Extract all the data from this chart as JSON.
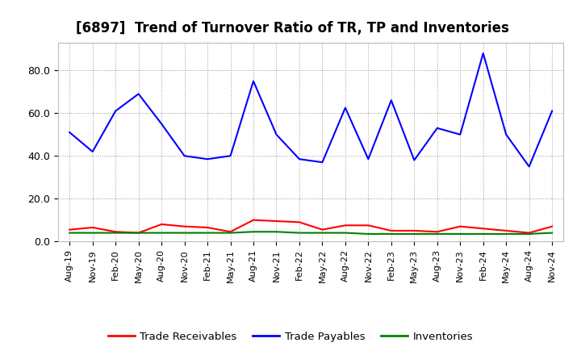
{
  "title": "[6897]  Trend of Turnover Ratio of TR, TP and Inventories",
  "x_labels": [
    "Aug-19",
    "Nov-19",
    "Feb-20",
    "May-20",
    "Aug-20",
    "Nov-20",
    "Feb-21",
    "May-21",
    "Aug-21",
    "Nov-21",
    "Feb-22",
    "May-22",
    "Aug-22",
    "Nov-22",
    "Feb-23",
    "May-23",
    "Aug-23",
    "Nov-23",
    "Feb-24",
    "May-24",
    "Aug-24",
    "Nov-24"
  ],
  "trade_receivables": [
    5.5,
    6.5,
    4.5,
    4.0,
    8.0,
    7.0,
    6.5,
    4.5,
    10.0,
    9.5,
    9.0,
    5.5,
    7.5,
    7.5,
    5.0,
    5.0,
    4.5,
    7.0,
    6.0,
    5.0,
    4.0,
    7.0
  ],
  "trade_payables": [
    51.0,
    42.0,
    61.0,
    69.0,
    55.0,
    40.0,
    38.5,
    40.0,
    75.0,
    50.0,
    38.5,
    37.0,
    62.5,
    38.5,
    66.0,
    38.0,
    53.0,
    50.0,
    88.0,
    50.0,
    35.0,
    61.0
  ],
  "inventories": [
    4.0,
    4.0,
    4.0,
    4.0,
    4.0,
    4.0,
    4.0,
    4.0,
    4.5,
    4.5,
    4.0,
    4.0,
    4.0,
    3.5,
    3.5,
    3.5,
    3.5,
    3.5,
    3.5,
    3.5,
    3.5,
    4.0
  ],
  "ylim": [
    0.0,
    93.0
  ],
  "yticks": [
    0.0,
    20.0,
    40.0,
    60.0,
    80.0
  ],
  "tr_color": "#ff0000",
  "tp_color": "#0000ff",
  "inv_color": "#008000",
  "background_color": "#ffffff",
  "grid_color": "#aaaaaa",
  "legend_labels": [
    "Trade Receivables",
    "Trade Payables",
    "Inventories"
  ],
  "title_fontsize": 12,
  "tick_fontsize": 8,
  "legend_fontsize": 9.5
}
